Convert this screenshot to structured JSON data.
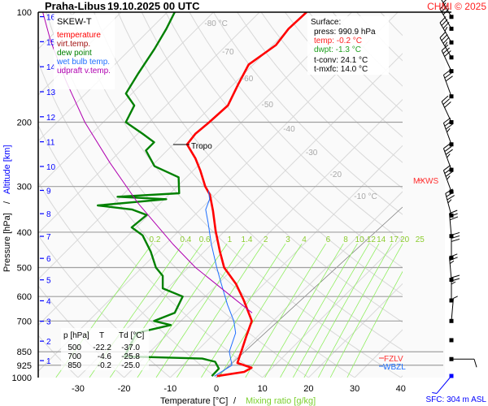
{
  "header": {
    "station": "Praha-Libus",
    "datetime": "19.10.2025 00 UTC",
    "copyright": "CHMI © 2025"
  },
  "legend": {
    "title": "SKEW-T",
    "items": [
      {
        "label": "temperature",
        "color": "#ff0000"
      },
      {
        "label": "virt.temp.",
        "color": "#a01010"
      },
      {
        "label": "dew point",
        "color": "#008000"
      },
      {
        "label": "wet bulb temp.",
        "color": "#1e6fff"
      },
      {
        "label": "udpraft v.temp.",
        "color": "#b000b0"
      }
    ]
  },
  "surface": {
    "title": "Surface:",
    "press": "press: 990.9 hPa",
    "temp": "temp: -0.2 °C",
    "dwpt": "dwpt: -1.3 °C",
    "tconv": "t-conv: 24.1 °C",
    "tmxfc": "t-mxfc: 14.0 °C"
  },
  "table": {
    "headers": [
      "p [hPa]",
      "T",
      "Td [°C]"
    ],
    "rows": [
      [
        "500",
        "-22.2",
        "-37.0"
      ],
      [
        "700",
        "-4.6",
        "-25.8"
      ],
      [
        "850",
        "-0.2",
        "-25.0"
      ]
    ]
  },
  "markers": {
    "tropo": "Tropo",
    "mxws": "MXWS",
    "fzlv": "FZLV",
    "wbzl": "WBZL",
    "sfc": "SFC: 304 m ASL"
  },
  "axes": {
    "ylabel_pressure": "Pressure [hPa]",
    "ylabel_sep": "/",
    "ylabel_altitude": "Altitude [km]",
    "xlabel_temp": "Temperature [°C]",
    "xlabel_sep": "/",
    "xlabel_mixing": "Mixing ratio [g/kg]"
  },
  "chart_data": {
    "type": "line",
    "subtype": "skew-t log-p",
    "pressure_ticks": [
      100,
      200,
      300,
      400,
      500,
      600,
      700,
      850,
      925,
      1000
    ],
    "temperature_ticks": [
      -30,
      -20,
      -10,
      0,
      10,
      20,
      30,
      40
    ],
    "altitude_ticks_km": [
      1,
      2,
      3,
      4,
      5,
      6,
      7,
      8,
      9,
      10,
      11,
      12,
      13,
      14,
      15,
      16
    ],
    "isotherm_labels": [
      {
        "t": -80,
        "label": "-80 °C"
      },
      {
        "t": -70,
        "label": "-70"
      },
      {
        "t": -60,
        "label": "-60"
      },
      {
        "t": -50,
        "label": "-50"
      },
      {
        "t": -40,
        "label": "-40"
      },
      {
        "t": -30,
        "label": "-30"
      },
      {
        "t": -20,
        "label": "-20"
      },
      {
        "t": -10,
        "label": "-10 °C"
      }
    ],
    "mixing_ratio_labels": [
      "0.2",
      "0.4",
      "0.6",
      "1",
      "1.4",
      "2",
      "3",
      "4",
      "6",
      "8",
      "10",
      "12",
      "14",
      "17",
      "20",
      "25"
    ],
    "xlim": [
      -35,
      45
    ],
    "ylim_hpa": [
      1000,
      100
    ],
    "colors": {
      "grid": "#a0a0a0",
      "isotherm": "#d0d0d0",
      "mixing": "#90ee60",
      "mixing_label": "#8ccc30",
      "altitude": "#0000ff"
    },
    "series": [
      {
        "name": "temperature",
        "color": "#ff0000",
        "points": [
          [
            990.9,
            -0.2
          ],
          [
            965,
            4.8
          ],
          [
            940,
            5.5
          ],
          [
            912,
            1.4
          ],
          [
            850,
            -0.2
          ],
          [
            770,
            -2.5
          ],
          [
            700,
            -4.6
          ],
          [
            615,
            -10.8
          ],
          [
            555,
            -16.0
          ],
          [
            500,
            -22.2
          ],
          [
            452,
            -26.6
          ],
          [
            398,
            -31.9
          ],
          [
            350,
            -36.9
          ],
          [
            316,
            -41.1
          ],
          [
            300,
            -43.9
          ],
          [
            271,
            -48.5
          ],
          [
            251,
            -52.2
          ],
          [
            230,
            -57.0
          ],
          [
            215,
            -57.5
          ],
          [
            200,
            -57.0
          ],
          [
            180,
            -56.6
          ],
          [
            158,
            -58.9
          ],
          [
            139,
            -61.0
          ],
          [
            123,
            -59.3
          ],
          [
            111,
            -60.1
          ],
          [
            100,
            -59.8
          ]
        ]
      },
      {
        "name": "dew point",
        "color": "#008000",
        "points": [
          [
            990.9,
            -1.3
          ],
          [
            945,
            -1.4
          ],
          [
            905,
            -3.7
          ],
          [
            887,
            -7.2
          ],
          [
            875,
            -24.5
          ],
          [
            850,
            -25.0
          ],
          [
            815,
            -25.7
          ],
          [
            755,
            -27.0
          ],
          [
            718,
            -21.3
          ],
          [
            700,
            -25.8
          ],
          [
            665,
            -23.1
          ],
          [
            600,
            -24.9
          ],
          [
            570,
            -31.0
          ],
          [
            527,
            -33.7
          ],
          [
            500,
            -37.0
          ],
          [
            452,
            -41.6
          ],
          [
            408,
            -46.9
          ],
          [
            388,
            -51.0
          ],
          [
            359,
            -50.4
          ],
          [
            347,
            -54.7
          ],
          [
            338,
            -63.1
          ],
          [
            325,
            -49.6
          ],
          [
            320,
            -60.7
          ],
          [
            313,
            -48.1
          ],
          [
            283,
            -51.7
          ],
          [
            264,
            -59.3
          ],
          [
            239,
            -64.6
          ],
          [
            227,
            -64.6
          ],
          [
            215,
            -69.0
          ],
          [
            200,
            -75.1
          ],
          [
            180,
            -76.9
          ],
          [
            167,
            -81.3
          ],
          [
            147,
            -83.0
          ],
          [
            126,
            -84.8
          ],
          [
            111,
            -86.6
          ],
          [
            100,
            -88.4
          ]
        ]
      },
      {
        "name": "wet bulb temp.",
        "color": "#1e6fff",
        "points": [
          [
            990.9,
            -0.7
          ],
          [
            925,
            0.7
          ],
          [
            850,
            -2.8
          ],
          [
            755,
            -5.5
          ],
          [
            700,
            -8.5
          ],
          [
            632,
            -13.4
          ],
          [
            555,
            -19.2
          ],
          [
            500,
            -23.8
          ],
          [
            430,
            -30.2
          ],
          [
            378,
            -35.3
          ],
          [
            347,
            -38.8
          ],
          [
            325,
            -40.2
          ],
          [
            308,
            -42.3
          ]
        ]
      },
      {
        "name": "udpraft v.temp.",
        "color": "#b000b0",
        "points": [
          [
            665,
            -6.3
          ],
          [
            600,
            -14.3
          ],
          [
            500,
            -28.4
          ],
          [
            430,
            -38.6
          ],
          [
            333,
            -54.9
          ],
          [
            258,
            -69.8
          ],
          [
            200,
            -84.0
          ],
          [
            155,
            -96.8
          ],
          [
            120,
            -109.0
          ],
          [
            100,
            -117.0
          ]
        ]
      }
    ],
    "tropopause_hpa": 230,
    "winds": [
      {
        "p": 103,
        "dir": 330,
        "kt": 30
      },
      {
        "p": 111,
        "dir": 330,
        "kt": 30
      },
      {
        "p": 121,
        "dir": 330,
        "kt": 35
      },
      {
        "p": 133,
        "dir": 330,
        "kt": 35
      },
      {
        "p": 145,
        "dir": 335,
        "kt": 30
      },
      {
        "p": 170,
        "dir": 340,
        "kt": 30
      },
      {
        "p": 200,
        "dir": 335,
        "kt": 30
      },
      {
        "p": 230,
        "dir": 340,
        "kt": 35
      },
      {
        "p": 270,
        "dir": 340,
        "kt": 35
      },
      {
        "p": 310,
        "dir": 340,
        "kt": 35
      },
      {
        "p": 360,
        "dir": 345,
        "kt": 35
      },
      {
        "p": 410,
        "dir": 355,
        "kt": 30
      },
      {
        "p": 470,
        "dir": 360,
        "kt": 30
      },
      {
        "p": 540,
        "dir": 355,
        "kt": 25
      },
      {
        "p": 615,
        "dir": 0,
        "kt": 25
      },
      {
        "p": 700,
        "dir": 5,
        "kt": 5
      },
      {
        "p": 790,
        "dir": 345,
        "kt": 0
      },
      {
        "p": 890,
        "dir": 90,
        "kt": 10
      },
      {
        "p": 990.9,
        "dir": 220,
        "kt": 5
      }
    ]
  }
}
